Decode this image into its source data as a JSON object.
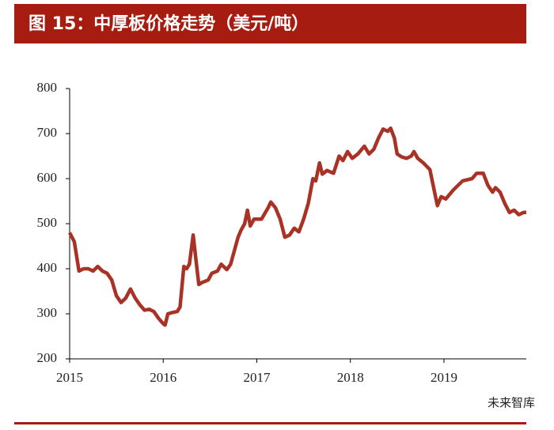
{
  "chart_data": {
    "type": "line",
    "title": "图 15：中厚板价格走势（美元/吨）",
    "watermark": "未来智库",
    "xlim": [
      2015,
      2019.88
    ],
    "xticks": [
      2015,
      2016,
      2017,
      2018,
      2019
    ],
    "ylim": [
      200,
      800
    ],
    "yticks": [
      200,
      300,
      400,
      500,
      600,
      700,
      800
    ],
    "series": [
      {
        "color": "#a93226",
        "x": [
          2015.0,
          2015.05,
          2015.1,
          2015.15,
          2015.2,
          2015.25,
          2015.3,
          2015.35,
          2015.4,
          2015.45,
          2015.5,
          2015.55,
          2015.6,
          2015.65,
          2015.7,
          2015.75,
          2015.8,
          2015.85,
          2015.9,
          2015.95,
          2016.0,
          2016.02,
          2016.05,
          2016.1,
          2016.15,
          2016.18,
          2016.22,
          2016.25,
          2016.28,
          2016.32,
          2016.35,
          2016.38,
          2016.42,
          2016.48,
          2016.52,
          2016.58,
          2016.62,
          2016.68,
          2016.72,
          2016.8,
          2016.83,
          2016.87,
          2016.9,
          2016.93,
          2016.97,
          2017.05,
          2017.12,
          2017.15,
          2017.2,
          2017.25,
          2017.3,
          2017.35,
          2017.4,
          2017.45,
          2017.5,
          2017.55,
          2017.6,
          2017.63,
          2017.67,
          2017.7,
          2017.75,
          2017.82,
          2017.88,
          2017.92,
          2017.97,
          2018.02,
          2018.08,
          2018.15,
          2018.2,
          2018.25,
          2018.3,
          2018.35,
          2018.4,
          2018.43,
          2018.47,
          2018.5,
          2018.55,
          2018.6,
          2018.65,
          2018.68,
          2018.72,
          2018.78,
          2018.85,
          2018.9,
          2018.93,
          2018.97,
          2019.02,
          2019.1,
          2019.2,
          2019.3,
          2019.35,
          2019.42,
          2019.47,
          2019.52,
          2019.55,
          2019.6,
          2019.65,
          2019.7,
          2019.75,
          2019.8,
          2019.85,
          2019.88
        ],
        "values": [
          480,
          460,
          395,
          400,
          400,
          395,
          405,
          395,
          390,
          375,
          340,
          325,
          335,
          355,
          335,
          320,
          308,
          310,
          305,
          290,
          278,
          275,
          300,
          303,
          305,
          315,
          405,
          400,
          410,
          475,
          420,
          365,
          370,
          375,
          390,
          395,
          410,
          398,
          410,
          470,
          485,
          500,
          530,
          495,
          510,
          510,
          535,
          548,
          535,
          510,
          470,
          475,
          490,
          482,
          510,
          545,
          600,
          595,
          635,
          610,
          618,
          612,
          650,
          640,
          660,
          645,
          655,
          672,
          655,
          665,
          690,
          710,
          705,
          712,
          690,
          655,
          648,
          645,
          650,
          660,
          645,
          635,
          620,
          570,
          540,
          560,
          555,
          575,
          595,
          600,
          612,
          612,
          585,
          570,
          580,
          570,
          545,
          525,
          530,
          520,
          525,
          525
        ]
      }
    ]
  }
}
